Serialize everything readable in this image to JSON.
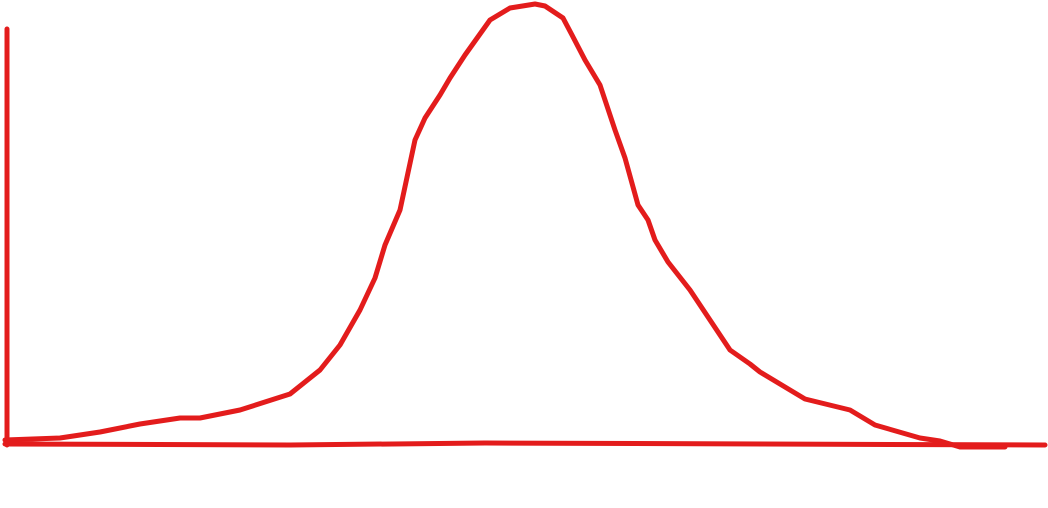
{
  "diagram": {
    "kind": "hand-drawn bell curve",
    "stroke_color": "#e31c1c",
    "labels": []
  }
}
